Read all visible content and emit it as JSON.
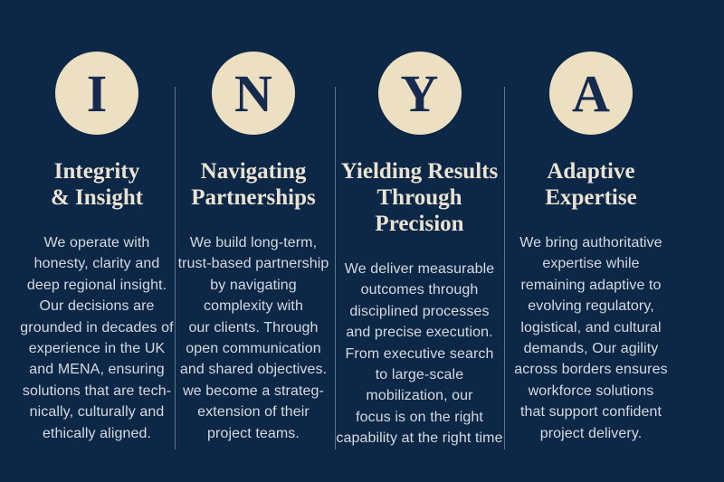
{
  "theme": {
    "background": "#0d2746",
    "circle_fill": "#ecdfc2",
    "letter_color": "#152a4e",
    "heading_color": "#eae3d3",
    "body_color": "#d5dae0",
    "divider_color": "rgba(205,210,205,0.45)"
  },
  "columns": [
    {
      "letter": "I",
      "heading_lines": [
        "Integrity",
        "& Insight"
      ],
      "body_lines": [
        "We operate with",
        "honesty, clarity and",
        "deep regional insight.",
        "Our decisions are",
        "grounded in decades of",
        "experience in the UK",
        "and MENA, ensuring",
        "solutions that are tech-",
        "nically, culturally and",
        "ethically aligned."
      ]
    },
    {
      "letter": "N",
      "heading_lines": [
        "Navigating",
        "Partnerships"
      ],
      "body_lines": [
        "We build long-term,",
        "trust-based partnership",
        "by navigating",
        "complexity with",
        "our clients. Through",
        "open communication",
        "and shared objectives.",
        "we become a strateg-",
        "extension of their",
        "project teams."
      ]
    },
    {
      "letter": "Y",
      "heading_lines": [
        "Yielding Results",
        "Through",
        "Precision"
      ],
      "body_lines": [
        "We deliver measurable",
        "outcomes through",
        "disciplined processes",
        "and precise execution.",
        "From executive search",
        "to large-scale",
        "mobilization, our",
        "focus is on the right",
        "capability at the right time"
      ]
    },
    {
      "letter": "A",
      "heading_lines": [
        "Adaptive",
        "Expertise"
      ],
      "body_lines": [
        "We bring authoritative",
        "expertise while",
        "remaining adaptive to",
        "evolving regulatory,",
        "logistical, and cultural",
        "demands, Our agility",
        "across borders ensures",
        "workforce solutions",
        "that support confident",
        "project delivery."
      ]
    }
  ]
}
